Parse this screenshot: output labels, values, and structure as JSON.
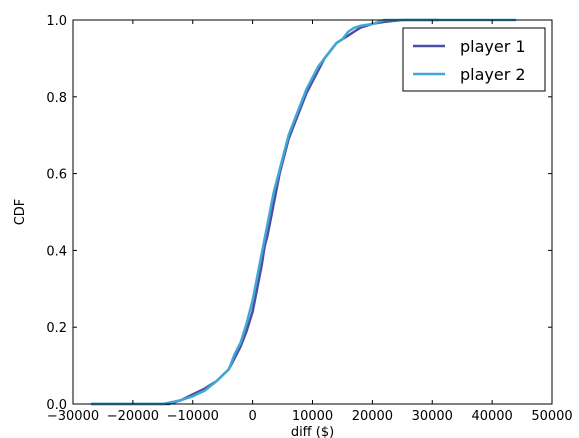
{
  "chart_data": {
    "type": "line",
    "xlabel": "diff ($)",
    "ylabel": "CDF",
    "xlim": [
      -30000,
      50000
    ],
    "ylim": [
      0.0,
      1.0
    ],
    "xticks": [
      -30000,
      -20000,
      -10000,
      0,
      10000,
      20000,
      30000,
      40000,
      50000
    ],
    "xtick_labels": [
      "−30000",
      "−20000",
      "−10000",
      "0",
      "10000",
      "20000",
      "30000",
      "40000",
      "50000"
    ],
    "yticks": [
      0.0,
      0.2,
      0.4,
      0.6,
      0.8,
      1.0
    ],
    "ytick_labels": [
      "0.0",
      "0.2",
      "0.4",
      "0.6",
      "0.8",
      "1.0"
    ],
    "grid": false,
    "legend_position": "top-right",
    "series": [
      {
        "name": "player 1",
        "color": "#4b4ea5",
        "x": [
          -27000,
          -14000,
          -12000,
          -10000,
          -8000,
          -6000,
          -4000,
          -3000,
          -2000,
          -1000,
          0,
          500,
          1000,
          1500,
          2000,
          2500,
          3000,
          3500,
          4000,
          4500,
          5000,
          5500,
          6000,
          7000,
          8000,
          9000,
          10000,
          11000,
          12000,
          13000,
          14000,
          15000,
          16000,
          17000,
          18000,
          20000,
          22000,
          25000,
          28000,
          31000
        ],
        "y": [
          0.0,
          0.0,
          0.01,
          0.025,
          0.04,
          0.06,
          0.09,
          0.12,
          0.15,
          0.19,
          0.24,
          0.28,
          0.32,
          0.36,
          0.41,
          0.44,
          0.48,
          0.52,
          0.56,
          0.6,
          0.63,
          0.66,
          0.69,
          0.73,
          0.77,
          0.81,
          0.84,
          0.87,
          0.9,
          0.92,
          0.94,
          0.95,
          0.96,
          0.97,
          0.98,
          0.99,
          0.995,
          1.0,
          1.0,
          1.0
        ]
      },
      {
        "name": "player 2",
        "color": "#42a8d3",
        "x": [
          -27000,
          -15000,
          -12000,
          -10000,
          -8000,
          -6000,
          -4000,
          -3000,
          -2000,
          -1000,
          0,
          500,
          1000,
          1500,
          2000,
          2500,
          3000,
          3500,
          4000,
          4500,
          5000,
          5500,
          6000,
          7000,
          8000,
          9000,
          10000,
          11000,
          12000,
          13000,
          14000,
          15000,
          16000,
          17000,
          18000,
          20000,
          22000,
          25000,
          30000,
          44000
        ],
        "y": [
          0.0,
          0.0,
          0.01,
          0.02,
          0.035,
          0.06,
          0.09,
          0.13,
          0.16,
          0.21,
          0.27,
          0.31,
          0.35,
          0.39,
          0.43,
          0.47,
          0.51,
          0.55,
          0.58,
          0.61,
          0.64,
          0.67,
          0.7,
          0.74,
          0.78,
          0.82,
          0.85,
          0.88,
          0.9,
          0.92,
          0.94,
          0.95,
          0.97,
          0.98,
          0.985,
          0.99,
          1.0,
          1.0,
          1.0,
          1.0
        ]
      }
    ]
  }
}
